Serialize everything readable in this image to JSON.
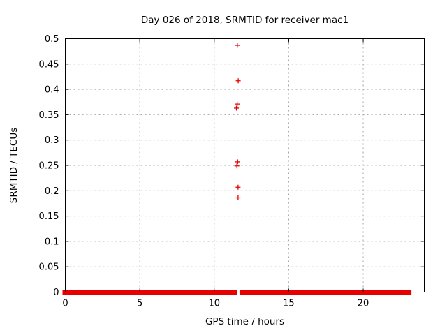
{
  "window": {
    "background": "#ffffff"
  },
  "chart_data": {
    "type": "scatter",
    "title": "Day 026 of 2018, SRMTID for receiver mac1",
    "xlabel": "GPS time / hours",
    "ylabel": "SRMTID / TECUs",
    "xlim": [
      0,
      24.1
    ],
    "ylim": [
      0,
      0.5
    ],
    "xtick_values": [
      0,
      5,
      10,
      15,
      20
    ],
    "xtick_labels": [
      "0",
      "5",
      "10",
      "15",
      "20"
    ],
    "ytick_values": [
      0,
      0.05,
      0.1,
      0.15,
      0.2,
      0.25,
      0.3,
      0.35,
      0.4,
      0.45,
      0.5
    ],
    "ytick_labels": [
      "0",
      "0.05",
      "0.1",
      "0.15",
      "0.2",
      "0.25",
      "0.3",
      "0.35",
      "0.4",
      "0.45",
      "0.5"
    ],
    "grid": true,
    "legend": "none",
    "marker": "plus",
    "marker_color": "#e60000",
    "grid_color": "#a0a0a0",
    "frame_color": "#000000",
    "series": [
      {
        "name": "SRMTID",
        "outlier_points": [
          [
            11.55,
            0.487
          ],
          [
            11.61,
            0.417
          ],
          [
            11.54,
            0.371
          ],
          [
            11.49,
            0.363
          ],
          [
            11.57,
            0.257
          ],
          [
            11.52,
            0.249
          ],
          [
            11.6,
            0.207
          ],
          [
            11.6,
            0.186
          ]
        ],
        "zero_band": {
          "y": 0,
          "x_start": 0,
          "x_end": 23.05,
          "gap_x": 11.62
        }
      }
    ]
  }
}
